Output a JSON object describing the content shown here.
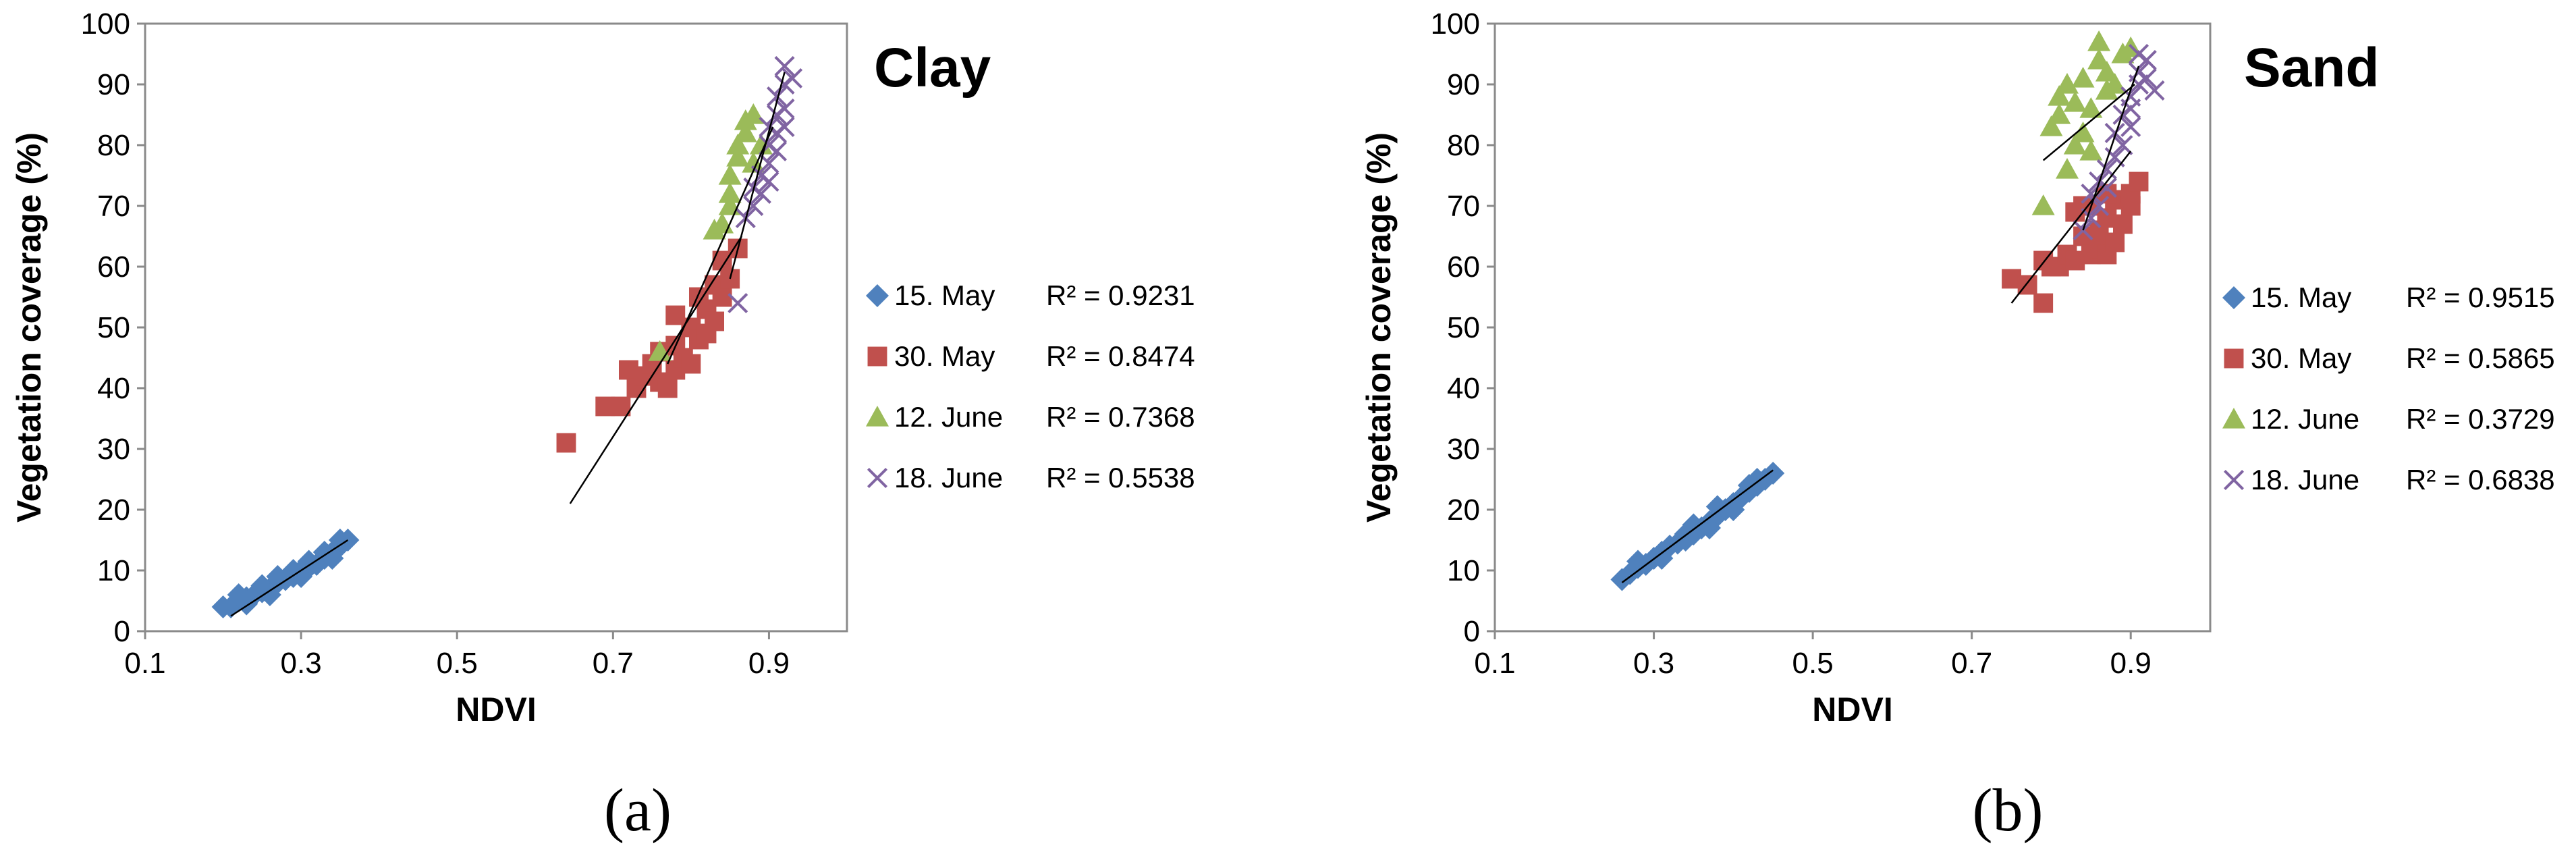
{
  "chart_data": [
    {
      "type": "scatter",
      "title": "Clay",
      "caption": "(a)",
      "xlabel": "NDVI",
      "ylabel": "Vegetation coverage (%)",
      "xlim": [
        0.1,
        1.0
      ],
      "ylim": [
        0,
        100
      ],
      "xticks": [
        "0.1",
        "0.3",
        "0.5",
        "0.7",
        "0.9"
      ],
      "yticks": [
        "0",
        "10",
        "20",
        "30",
        "40",
        "50",
        "60",
        "70",
        "80",
        "90",
        "100"
      ],
      "grid": false,
      "legend_position": "right",
      "series": [
        {
          "name": "15. May",
          "marker": "diamond",
          "color": "#4f81bd",
          "r2_label": "R² = 0.9231",
          "trendline": [
            [
              0.21,
              2.5
            ],
            [
              0.36,
              15.0
            ]
          ],
          "points": [
            [
              0.2,
              4
            ],
            [
              0.21,
              4
            ],
            [
              0.22,
              5
            ],
            [
              0.23,
              5.5
            ],
            [
              0.24,
              6
            ],
            [
              0.25,
              6.5
            ],
            [
              0.26,
              7
            ],
            [
              0.27,
              8
            ],
            [
              0.28,
              8.5
            ],
            [
              0.29,
              9
            ],
            [
              0.3,
              10
            ],
            [
              0.31,
              10.5
            ],
            [
              0.32,
              11
            ],
            [
              0.33,
              12
            ],
            [
              0.34,
              13
            ],
            [
              0.35,
              14
            ],
            [
              0.36,
              15
            ],
            [
              0.23,
              4.5
            ],
            [
              0.25,
              7.5
            ],
            [
              0.27,
              9
            ],
            [
              0.29,
              10
            ],
            [
              0.31,
              11.5
            ],
            [
              0.33,
              13
            ],
            [
              0.35,
              15
            ],
            [
              0.22,
              6
            ],
            [
              0.26,
              6
            ],
            [
              0.3,
              9
            ],
            [
              0.34,
              12
            ]
          ]
        },
        {
          "name": "30. May",
          "marker": "square",
          "color": "#c0504d",
          "r2_label": "R² = 0.8474",
          "trendline": [
            [
              0.645,
              21
            ],
            [
              0.865,
              65
            ]
          ],
          "points": [
            [
              0.64,
              31
            ],
            [
              0.69,
              37
            ],
            [
              0.71,
              37
            ],
            [
              0.72,
              43
            ],
            [
              0.73,
              40
            ],
            [
              0.74,
              42
            ],
            [
              0.75,
              44
            ],
            [
              0.76,
              41
            ],
            [
              0.76,
              46
            ],
            [
              0.77,
              40
            ],
            [
              0.78,
              43
            ],
            [
              0.78,
              47
            ],
            [
              0.78,
              52
            ],
            [
              0.79,
              45
            ],
            [
              0.8,
              44
            ],
            [
              0.8,
              50
            ],
            [
              0.81,
              55
            ],
            [
              0.81,
              48
            ],
            [
              0.82,
              49
            ],
            [
              0.82,
              53
            ],
            [
              0.83,
              57
            ],
            [
              0.83,
              51
            ],
            [
              0.84,
              61
            ],
            [
              0.84,
              55
            ],
            [
              0.85,
              58
            ],
            [
              0.86,
              63
            ]
          ]
        },
        {
          "name": "12. June",
          "marker": "triangle",
          "color": "#9bbb59",
          "r2_label": "R² = 0.7368",
          "trendline": [
            [
              0.77,
              44
            ],
            [
              0.905,
              83
            ]
          ],
          "points": [
            [
              0.76,
              46
            ],
            [
              0.83,
              66
            ],
            [
              0.84,
              67
            ],
            [
              0.85,
              70
            ],
            [
              0.85,
              75
            ],
            [
              0.86,
              78
            ],
            [
              0.86,
              80
            ],
            [
              0.87,
              82
            ],
            [
              0.87,
              84
            ],
            [
              0.88,
              85
            ],
            [
              0.88,
              77
            ],
            [
              0.89,
              80
            ],
            [
              0.85,
              72
            ]
          ]
        },
        {
          "name": "18. June",
          "marker": "x",
          "color": "#8064a2",
          "r2_label": "R² = 0.5538",
          "trendline": [
            [
              0.85,
              58
            ],
            [
              0.92,
              92
            ]
          ],
          "points": [
            [
              0.86,
              54
            ],
            [
              0.87,
              68
            ],
            [
              0.88,
              70
            ],
            [
              0.88,
              73
            ],
            [
              0.89,
              75
            ],
            [
              0.89,
              72
            ],
            [
              0.9,
              80
            ],
            [
              0.9,
              77
            ],
            [
              0.9,
              74
            ],
            [
              0.91,
              85
            ],
            [
              0.91,
              82
            ],
            [
              0.91,
              88
            ],
            [
              0.92,
              90
            ],
            [
              0.92,
              93
            ],
            [
              0.92,
              86
            ],
            [
              0.93,
              91
            ],
            [
              0.91,
              79
            ],
            [
              0.92,
              83
            ],
            [
              0.9,
              83
            ]
          ]
        }
      ]
    },
    {
      "type": "scatter",
      "title": "Sand",
      "caption": "(b)",
      "xlabel": "NDVI",
      "ylabel": "Vegetation coverage (%)",
      "xlim": [
        0.1,
        1.0
      ],
      "ylim": [
        0,
        100
      ],
      "xticks": [
        "0.1",
        "0.3",
        "0.5",
        "0.7",
        "0.9"
      ],
      "yticks": [
        "0",
        "10",
        "20",
        "30",
        "40",
        "50",
        "60",
        "70",
        "80",
        "90",
        "100"
      ],
      "grid": false,
      "legend_position": "right",
      "series": [
        {
          "name": "15. May",
          "marker": "diamond",
          "color": "#4f81bd",
          "r2_label": "R² = 0.9515",
          "trendline": [
            [
              0.26,
              8
            ],
            [
              0.45,
              26.5
            ]
          ],
          "points": [
            [
              0.26,
              8.5
            ],
            [
              0.27,
              9.5
            ],
            [
              0.28,
              10.5
            ],
            [
              0.29,
              11
            ],
            [
              0.3,
              12
            ],
            [
              0.31,
              13
            ],
            [
              0.32,
              14
            ],
            [
              0.33,
              14.5
            ],
            [
              0.34,
              15
            ],
            [
              0.35,
              16
            ],
            [
              0.36,
              17
            ],
            [
              0.37,
              18
            ],
            [
              0.38,
              19
            ],
            [
              0.39,
              20
            ],
            [
              0.4,
              21
            ],
            [
              0.41,
              22
            ],
            [
              0.42,
              23
            ],
            [
              0.43,
              24
            ],
            [
              0.44,
              25
            ],
            [
              0.45,
              26
            ],
            [
              0.28,
              11.5
            ],
            [
              0.31,
              12
            ],
            [
              0.34,
              16
            ],
            [
              0.37,
              17
            ],
            [
              0.4,
              20
            ],
            [
              0.43,
              25
            ],
            [
              0.35,
              17.5
            ],
            [
              0.38,
              20.5
            ],
            [
              0.42,
              24
            ]
          ]
        },
        {
          "name": "30. May",
          "marker": "square",
          "color": "#c0504d",
          "r2_label": "R² = 0.5865",
          "trendline": [
            [
              0.75,
              54
            ],
            [
              0.9,
              79
            ]
          ],
          "points": [
            [
              0.75,
              58
            ],
            [
              0.77,
              57
            ],
            [
              0.79,
              54
            ],
            [
              0.79,
              61
            ],
            [
              0.8,
              60
            ],
            [
              0.81,
              60
            ],
            [
              0.82,
              62
            ],
            [
              0.83,
              61
            ],
            [
              0.83,
              69
            ],
            [
              0.84,
              65
            ],
            [
              0.85,
              62
            ],
            [
              0.85,
              70
            ],
            [
              0.86,
              63
            ],
            [
              0.86,
              66
            ],
            [
              0.87,
              62
            ],
            [
              0.87,
              68
            ],
            [
              0.88,
              71
            ],
            [
              0.88,
              64
            ],
            [
              0.89,
              67
            ],
            [
              0.9,
              72
            ],
            [
              0.9,
              70
            ],
            [
              0.91,
              74
            ],
            [
              0.87,
              72
            ],
            [
              0.84,
              70
            ]
          ]
        },
        {
          "name": "12. June",
          "marker": "triangle",
          "color": "#9bbb59",
          "r2_label": "R² = 0.3729",
          "trendline": [
            [
              0.79,
              77.5
            ],
            [
              0.905,
              90
            ]
          ],
          "points": [
            [
              0.79,
              70
            ],
            [
              0.8,
              83
            ],
            [
              0.81,
              85
            ],
            [
              0.81,
              88
            ],
            [
              0.82,
              90
            ],
            [
              0.83,
              87
            ],
            [
              0.84,
              91
            ],
            [
              0.84,
              82
            ],
            [
              0.85,
              86
            ],
            [
              0.86,
              94
            ],
            [
              0.86,
              97
            ],
            [
              0.87,
              92
            ],
            [
              0.87,
              89
            ],
            [
              0.88,
              90
            ],
            [
              0.89,
              95
            ],
            [
              0.9,
              96
            ],
            [
              0.85,
              79
            ],
            [
              0.83,
              80
            ],
            [
              0.82,
              76
            ]
          ]
        },
        {
          "name": "18. June",
          "marker": "x",
          "color": "#8064a2",
          "r2_label": "R² = 0.6838",
          "trendline": [
            [
              0.84,
              66
            ],
            [
              0.91,
              93
            ]
          ],
          "points": [
            [
              0.84,
              66
            ],
            [
              0.85,
              68
            ],
            [
              0.85,
              72
            ],
            [
              0.86,
              70
            ],
            [
              0.87,
              73
            ],
            [
              0.87,
              76
            ],
            [
              0.88,
              78
            ],
            [
              0.88,
              82
            ],
            [
              0.89,
              80
            ],
            [
              0.89,
              85
            ],
            [
              0.9,
              86
            ],
            [
              0.9,
              88
            ],
            [
              0.91,
              90
            ],
            [
              0.91,
              92
            ],
            [
              0.92,
              94
            ],
            [
              0.92,
              91
            ],
            [
              0.93,
              89
            ],
            [
              0.91,
              95
            ],
            [
              0.9,
              83
            ],
            [
              0.86,
              74
            ]
          ]
        }
      ]
    }
  ]
}
